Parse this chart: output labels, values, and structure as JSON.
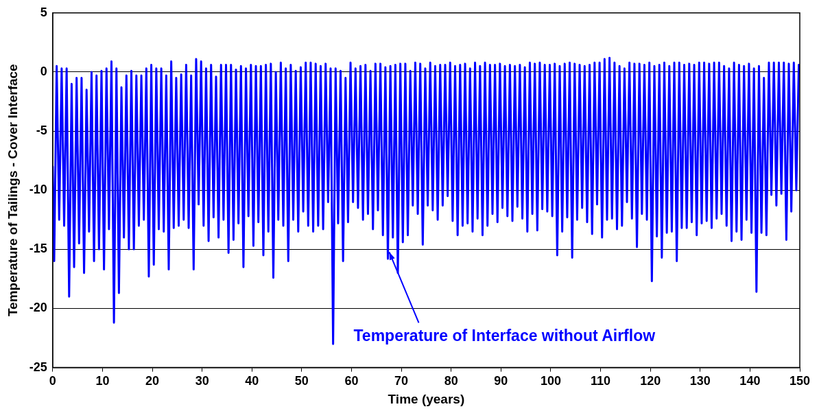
{
  "chart_data": {
    "type": "line",
    "xlabel": "Time (years)",
    "ylabel": "Temperature of Tailings - Cover Interface",
    "xlim": [
      0,
      150
    ],
    "xticks": [
      0,
      10,
      20,
      30,
      40,
      50,
      60,
      70,
      80,
      90,
      100,
      110,
      120,
      130,
      140,
      150
    ],
    "ylim": [
      -25,
      5
    ],
    "yticks": [
      -25,
      -20,
      -15,
      -10,
      -5,
      0,
      5
    ],
    "grid": "y",
    "legend": false,
    "marker": "none",
    "line_style": "solid",
    "annotations": [
      {
        "text": "Temperature of Interface without Airflow",
        "x": 67.3,
        "y": -15
      }
    ],
    "series": [
      {
        "color": "#0000ff",
        "x": [
          0,
          0.3,
          0.8,
          1.3,
          1.8,
          2.3,
          2.8,
          3.3,
          3.8,
          4.3,
          4.8,
          5.3,
          5.8,
          6.3,
          6.8,
          7.3,
          7.8,
          8.3,
          8.8,
          9.3,
          9.8,
          10.3,
          10.8,
          11.3,
          11.8,
          12.3,
          12.8,
          13.3,
          13.8,
          14.3,
          14.8,
          15.3,
          15.8,
          16.3,
          16.8,
          17.3,
          17.8,
          18.3,
          18.8,
          19.3,
          19.8,
          20.3,
          20.8,
          21.3,
          21.8,
          22.3,
          22.8,
          23.3,
          23.8,
          24.3,
          24.8,
          25.3,
          25.8,
          26.3,
          26.8,
          27.3,
          27.8,
          28.3,
          28.8,
          29.3,
          29.8,
          30.3,
          30.8,
          31.3,
          31.8,
          32.3,
          32.8,
          33.3,
          33.8,
          34.3,
          34.8,
          35.3,
          35.8,
          36.3,
          36.8,
          37.3,
          37.8,
          38.3,
          38.8,
          39.3,
          39.8,
          40.3,
          40.8,
          41.3,
          41.8,
          42.3,
          42.8,
          43.3,
          43.8,
          44.3,
          44.8,
          45.3,
          45.8,
          46.3,
          46.8,
          47.3,
          47.8,
          48.3,
          48.8,
          49.3,
          49.8,
          50.3,
          50.8,
          51.3,
          51.8,
          52.3,
          52.8,
          53.3,
          53.8,
          54.3,
          54.8,
          55.3,
          55.8,
          56.3,
          56.8,
          57.3,
          57.8,
          58.3,
          58.8,
          59.3,
          59.8,
          60.3,
          60.8,
          61.3,
          61.8,
          62.3,
          62.8,
          63.3,
          63.8,
          64.3,
          64.8,
          65.3,
          65.8,
          66.3,
          66.8,
          67.3,
          67.8,
          68.3,
          68.8,
          69.3,
          69.8,
          70.3,
          70.8,
          71.3,
          71.8,
          72.3,
          72.8,
          73.3,
          73.8,
          74.3,
          74.8,
          75.3,
          75.8,
          76.3,
          76.8,
          77.3,
          77.8,
          78.3,
          78.8,
          79.3,
          79.8,
          80.3,
          80.8,
          81.3,
          81.8,
          82.3,
          82.8,
          83.3,
          83.8,
          84.3,
          84.8,
          85.3,
          85.8,
          86.3,
          86.8,
          87.3,
          87.8,
          88.3,
          88.8,
          89.3,
          89.8,
          90.3,
          90.8,
          91.3,
          91.8,
          92.3,
          92.8,
          93.3,
          93.8,
          94.3,
          94.8,
          95.3,
          95.8,
          96.3,
          96.8,
          97.3,
          97.8,
          98.3,
          98.8,
          99.3,
          99.8,
          100.3,
          100.8,
          101.3,
          101.8,
          102.3,
          102.8,
          103.3,
          103.8,
          104.3,
          104.8,
          105.3,
          105.8,
          106.3,
          106.8,
          107.3,
          107.8,
          108.3,
          108.8,
          109.3,
          109.8,
          110.3,
          110.8,
          111.3,
          111.8,
          112.3,
          112.8,
          113.3,
          113.8,
          114.3,
          114.8,
          115.3,
          115.8,
          116.3,
          116.8,
          117.3,
          117.8,
          118.3,
          118.8,
          119.3,
          119.8,
          120.3,
          120.8,
          121.3,
          121.8,
          122.3,
          122.8,
          123.3,
          123.8,
          124.3,
          124.8,
          125.3,
          125.8,
          126.3,
          126.8,
          127.3,
          127.8,
          128.3,
          128.8,
          129.3,
          129.8,
          130.3,
          130.8,
          131.3,
          131.8,
          132.3,
          132.8,
          133.3,
          133.8,
          134.3,
          134.8,
          135.3,
          135.8,
          136.3,
          136.8,
          137.3,
          137.8,
          138.3,
          138.8,
          139.3,
          139.8,
          140.3,
          140.8,
          141.3,
          141.8,
          142.3,
          142.8,
          143.3,
          143.8,
          144.3,
          144.8,
          145.3,
          145.8,
          146.3,
          146.8,
          147.3,
          147.8,
          148.3,
          148.8,
          149.3,
          149.8,
          150
        ],
        "values": [
          -8,
          -16,
          0.5,
          -12.5,
          0.3,
          -13,
          0.3,
          -19,
          -1,
          -16.5,
          -0.5,
          -14.5,
          -0.5,
          -17,
          -1.5,
          -13.5,
          0,
          -16,
          -0.3,
          -15,
          0.1,
          -16.7,
          0.3,
          -13.3,
          0.9,
          -21.2,
          0.3,
          -18.7,
          -1.3,
          -14,
          -0.3,
          -15,
          0.1,
          -15,
          -0.3,
          -13,
          -0.3,
          -12.5,
          0.3,
          -17.3,
          0.6,
          -16.3,
          0.3,
          -13.3,
          0.3,
          -13.5,
          -0.3,
          -16.7,
          0.9,
          -13.2,
          -0.5,
          -13,
          -0.2,
          -12.5,
          0.6,
          -13.2,
          -0.3,
          -16.7,
          1.1,
          -11.2,
          0.9,
          -13,
          0.3,
          -14.3,
          0.6,
          -12.3,
          -0.4,
          -14,
          0.6,
          -12.5,
          0.6,
          -15.3,
          0.6,
          -14.2,
          0.2,
          -12.8,
          0.5,
          -16.5,
          0.3,
          -12.2,
          0.6,
          -14.7,
          0.5,
          -12.7,
          0.5,
          -15.5,
          0.6,
          -13.5,
          0.7,
          -17.4,
          0,
          -12.5,
          0.8,
          -13,
          0.3,
          -16,
          0.6,
          -12.5,
          0.1,
          -13.5,
          0.4,
          -11.8,
          0.8,
          -13,
          0.8,
          -13.5,
          0.7,
          -13,
          0.5,
          -13.3,
          0.7,
          -11,
          0.3,
          -23,
          0.3,
          -12.8,
          0.1,
          -16,
          -0.5,
          -12.7,
          0.8,
          -11,
          0.3,
          -11.5,
          0.5,
          -12.5,
          0.6,
          -12,
          0.1,
          -13.3,
          0.7,
          -11.7,
          0.7,
          -13.8,
          0.4,
          -15.8,
          0.5,
          -14,
          0.6,
          -17,
          0.7,
          -14.4,
          0.7,
          -13.8,
          0.1,
          -11.3,
          0.8,
          -12,
          0.7,
          -14.6,
          0.3,
          -11.3,
          0.8,
          -11.7,
          0.5,
          -12.5,
          0.6,
          -11.3,
          0.6,
          -10.5,
          0.8,
          -12.6,
          0.5,
          -13.8,
          0.6,
          -13,
          0.7,
          -12.8,
          0.3,
          -13.5,
          0.8,
          -12.4,
          0.5,
          -13.8,
          0.8,
          -13,
          0.6,
          -12,
          0.6,
          -12.7,
          0.7,
          -11.5,
          0.5,
          -12.2,
          0.6,
          -12.6,
          0.5,
          -11.4,
          0.6,
          -12.4,
          0.4,
          -13.5,
          0.8,
          -12,
          0.7,
          -13.4,
          0.8,
          -11.6,
          0.6,
          -11.8,
          0.6,
          -12.2,
          0.7,
          -15.5,
          0.5,
          -13.5,
          0.7,
          -12.3,
          0.8,
          -15.7,
          0.7,
          -12.5,
          0.6,
          -11.5,
          0.5,
          -12.7,
          0.6,
          -13.7,
          0.8,
          -11.2,
          0.8,
          -14,
          1.1,
          -12.5,
          1.2,
          -12.4,
          0.8,
          -13.3,
          0.5,
          -13,
          0.3,
          -11,
          0.8,
          -12.4,
          0.7,
          -14.8,
          0.7,
          -12,
          0.6,
          -12.5,
          0.8,
          -17.7,
          0.5,
          -13.9,
          0.6,
          -15.7,
          0.8,
          -13.6,
          0.5,
          -13.5,
          0.8,
          -16,
          0.8,
          -13.2,
          0.6,
          -13.2,
          0.7,
          -12.7,
          0.6,
          -13.8,
          0.8,
          -12.8,
          0.8,
          -12.6,
          0.7,
          -13.2,
          0.8,
          -12.4,
          0.8,
          -12,
          0.5,
          -13,
          0.3,
          -14.3,
          0.8,
          -13.5,
          0.6,
          -14.2,
          0.5,
          -12.5,
          0.7,
          -13.6,
          0.3,
          -18.6,
          0.5,
          -13.6,
          -0.5,
          -13.8,
          0.8,
          -10.4,
          0.8,
          -11.3,
          0.8,
          -10.3,
          0.8,
          -14.2,
          0.7,
          -11.8,
          0.8,
          -10,
          0.6,
          0
        ]
      }
    ]
  }
}
